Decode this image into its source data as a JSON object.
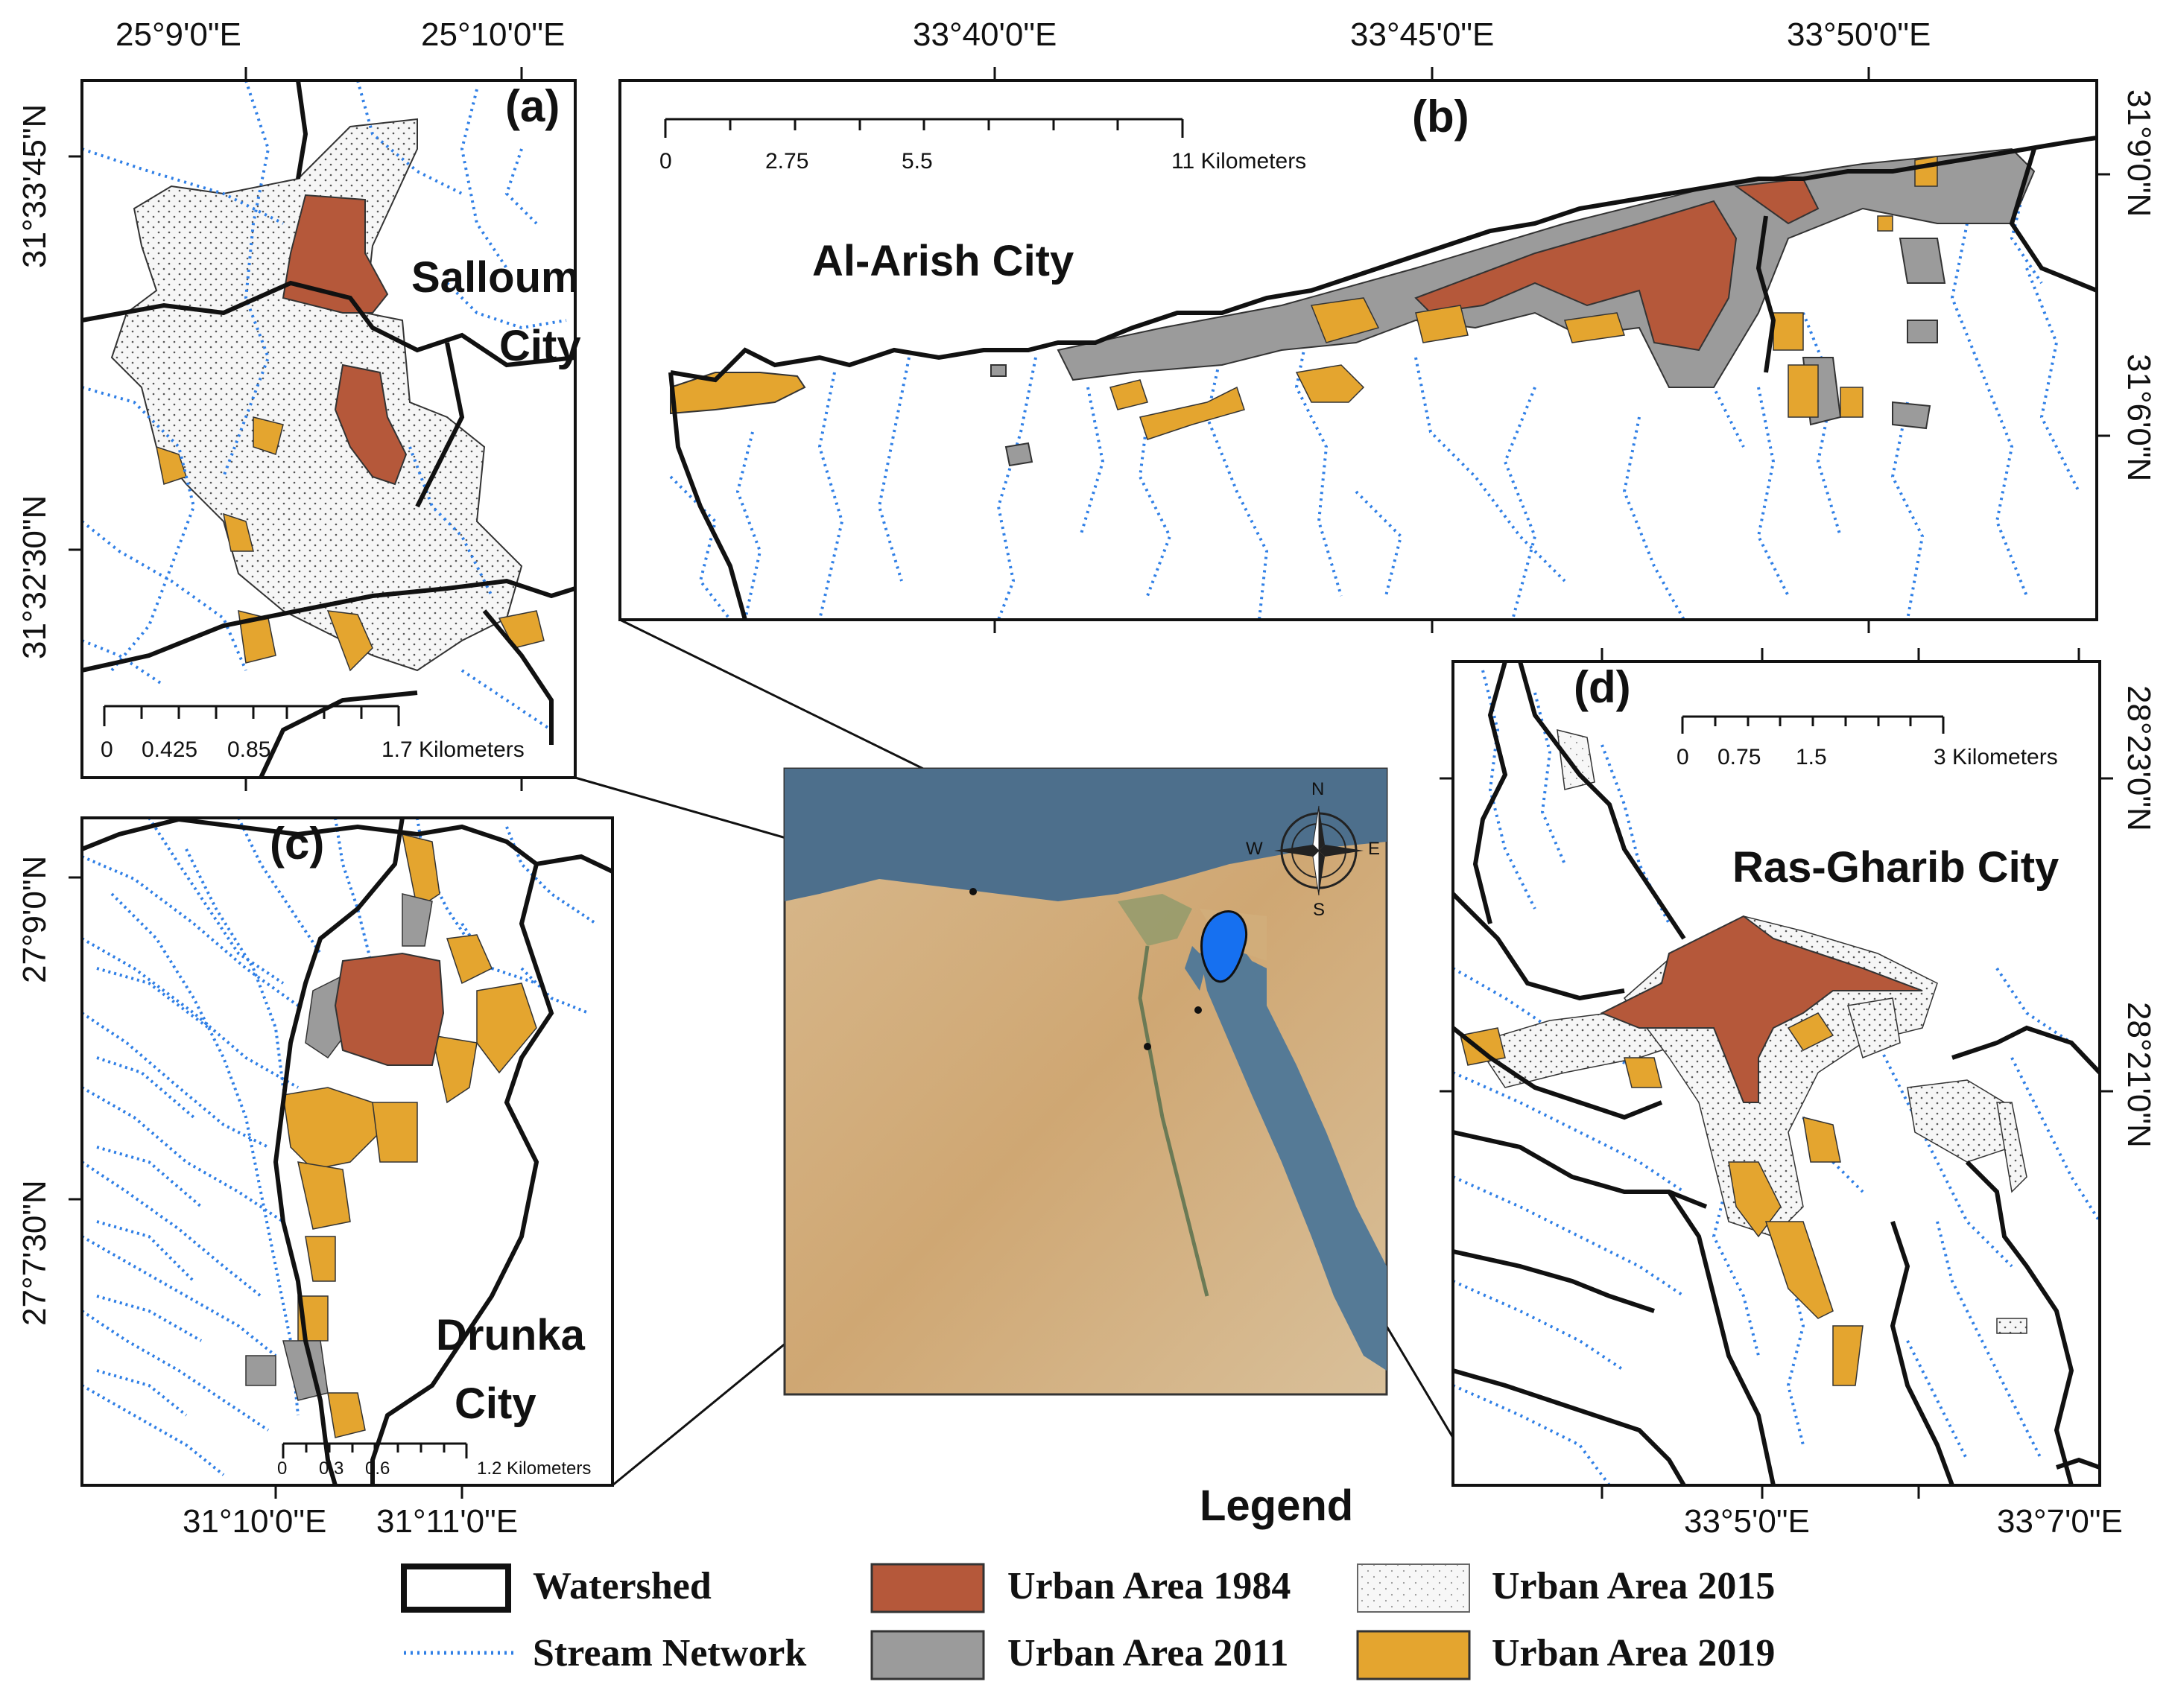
{
  "panels": {
    "a": {
      "letter": "(a)",
      "city_line1": "Salloum",
      "city_line2": "City",
      "top_coords": [
        "25°9'0\"E",
        "25°10'0\"E"
      ],
      "left_coords": [
        "31°33'45\"N",
        "31°32'30\"N"
      ],
      "scale": {
        "t0": "0",
        "t1": "0.425",
        "t2": "0.85",
        "t3": "1.7 Kilometers"
      }
    },
    "b": {
      "letter": "(b)",
      "city": "Al-Arish City",
      "top_coords": [
        "33°40'0\"E",
        "33°45'0\"E",
        "33°50'0\"E"
      ],
      "right_coords": [
        "31°9'0\"N",
        "31°6'0\"N"
      ],
      "scale": {
        "t0": "0",
        "t1": "2.75",
        "t2": "5.5",
        "t3": "11 Kilometers"
      }
    },
    "c": {
      "letter": "(c)",
      "city_line1": "Drunka",
      "city_line2": "City",
      "bottom_coords": [
        "31°10'0\"E",
        "31°11'0\"E"
      ],
      "left_coords": [
        "27°9'0\"N",
        "27°7'30\"N"
      ],
      "scale": {
        "t0": "0",
        "t1": "0.3",
        "t2": "0.6",
        "t3": "1.2 Kilometers"
      }
    },
    "d": {
      "letter": "(d)",
      "city": "Ras-Gharib City",
      "bottom_coords": [
        "33°5'0\"E",
        "33°7'0\"E"
      ],
      "right_coords": [
        "28°23'0\"N",
        "28°21'0\"N"
      ],
      "scale": {
        "t0": "0",
        "t1": "0.75",
        "t2": "1.5",
        "t3": "3 Kilometers"
      }
    }
  },
  "compass": {
    "n": "N",
    "s": "S",
    "e": "E",
    "w": "W"
  },
  "legend": {
    "title": "Legend",
    "items": [
      {
        "key": "watershed",
        "label": "Watershed"
      },
      {
        "key": "stream",
        "label": "Stream Network"
      },
      {
        "key": "u1984",
        "label": "Urban Area 1984",
        "color": "#b5583a"
      },
      {
        "key": "u2011",
        "label": "Urban Area 2011",
        "color": "#9b9b9b"
      },
      {
        "key": "u2015",
        "label": "Urban Area 2015",
        "color": "#f4f4f4"
      },
      {
        "key": "u2019",
        "label": "Urban Area 2019",
        "color": "#e4a52f"
      }
    ]
  },
  "colors": {
    "stream": "#2f7fe6",
    "watershed": "#111111",
    "sea": "#4d6f8c",
    "desert": "#d9b98c",
    "city_marker": "#1670f0"
  }
}
